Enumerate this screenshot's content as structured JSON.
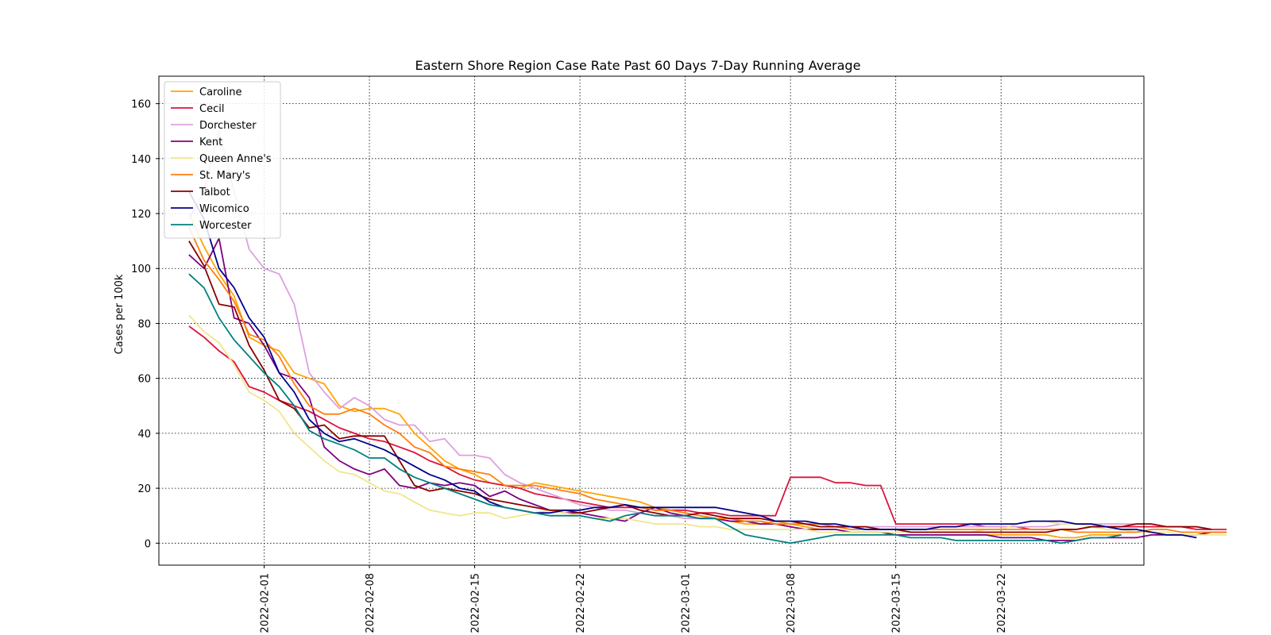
{
  "chart_data": {
    "type": "line",
    "title": "Eastern Shore Region Case Rate  Past 60 Days 7-Day Running Average",
    "xlabel": "",
    "ylabel": "Cases per 100k",
    "x_start": "2022-01-27",
    "x_range": [
      "2022-01-25T00:00",
      "2022-03-31T12:00"
    ],
    "ylim": [
      -8,
      170
    ],
    "x_ticks": [
      "2022-02-01",
      "2022-02-08",
      "2022-02-15",
      "2022-02-22",
      "2022-03-01",
      "2022-03-08",
      "2022-03-15",
      "2022-03-22"
    ],
    "y_ticks": [
      0,
      20,
      40,
      60,
      80,
      100,
      120,
      140,
      160
    ],
    "grid": true,
    "legend_position": "top-left",
    "series": [
      {
        "name": "Caroline",
        "color": "#ffa500",
        "values": [
          120,
          108,
          98,
          90,
          75,
          72,
          70,
          62,
          60,
          58,
          50,
          48,
          49,
          49,
          47,
          40,
          35,
          30,
          27,
          25,
          22,
          21,
          20,
          22,
          21,
          20,
          19,
          18,
          17,
          16,
          15,
          13,
          12,
          11,
          10,
          9,
          8,
          7,
          7,
          8,
          7,
          6,
          5,
          5,
          4,
          4,
          4,
          3,
          3,
          3,
          3,
          3,
          3,
          3,
          3,
          3,
          3,
          3,
          2,
          2,
          3,
          3,
          3
        ]
      },
      {
        "name": "Cecil",
        "color": "#dc143c",
        "values": [
          79,
          75,
          70,
          66,
          57,
          55,
          52,
          50,
          48,
          45,
          42,
          40,
          38,
          37,
          35,
          33,
          30,
          28,
          25,
          23,
          22,
          21,
          20,
          18,
          17,
          16,
          15,
          14,
          13,
          13,
          13,
          12,
          12,
          12,
          11,
          11,
          10,
          10,
          10,
          10,
          24,
          24,
          24,
          22,
          22,
          21,
          21,
          7,
          7,
          7,
          7,
          7,
          7,
          6,
          6,
          6,
          5,
          5,
          5,
          5,
          6,
          6,
          6,
          6,
          6,
          6,
          6,
          5,
          5,
          5
        ]
      },
      {
        "name": "Dorchester",
        "color": "#dda0dd",
        "values": [
          118,
          128,
          150,
          128,
          107,
          100,
          98,
          87,
          62,
          55,
          49,
          53,
          50,
          45,
          43,
          43,
          37,
          38,
          32,
          32,
          31,
          25,
          22,
          20,
          18,
          16,
          14,
          13,
          12,
          12,
          11,
          10,
          10,
          9,
          9,
          9,
          8,
          8,
          8,
          7,
          7,
          7,
          7,
          6,
          6,
          6,
          6,
          6,
          6,
          6,
          6,
          6,
          6,
          6,
          6,
          6,
          6,
          6,
          7,
          7,
          7,
          7,
          7,
          7,
          7,
          6,
          6,
          6
        ]
      },
      {
        "name": "Kent",
        "color": "#800080",
        "values": [
          105,
          100,
          111,
          82,
          80,
          72,
          62,
          60,
          53,
          35,
          30,
          27,
          25,
          27,
          21,
          20,
          22,
          21,
          22,
          21,
          17,
          19,
          16,
          14,
          12,
          11,
          11,
          10,
          9,
          8,
          11,
          13,
          11,
          10,
          9,
          9,
          8,
          8,
          7,
          7,
          6,
          5,
          5,
          5,
          4,
          4,
          4,
          3,
          3,
          3,
          3,
          3,
          3,
          3,
          2,
          2,
          2,
          1,
          1,
          1,
          2,
          2,
          2,
          2,
          3,
          3,
          3,
          3,
          4,
          4
        ]
      },
      {
        "name": "Queen Anne's",
        "color": "#f0e68c",
        "values": [
          83,
          77,
          73,
          65,
          55,
          52,
          48,
          40,
          35,
          30,
          26,
          25,
          22,
          19,
          18,
          15,
          12,
          11,
          10,
          11,
          11,
          9,
          10,
          11,
          12,
          11,
          10,
          9,
          9,
          9,
          8,
          7,
          7,
          7,
          6,
          6,
          5,
          5,
          5,
          5,
          5,
          5,
          4,
          4,
          4,
          4,
          4,
          4,
          4,
          4,
          4,
          4,
          4,
          5,
          5,
          7,
          8,
          8,
          7,
          7,
          6,
          5,
          5,
          4,
          4,
          4,
          3,
          3,
          3,
          3
        ]
      },
      {
        "name": "St. Mary's",
        "color": "#ff7f0e",
        "values": [
          115,
          103,
          96,
          88,
          76,
          74,
          68,
          58,
          50,
          47,
          47,
          49,
          47,
          43,
          40,
          35,
          33,
          28,
          27,
          26,
          25,
          21,
          21,
          21,
          20,
          19,
          18,
          16,
          15,
          14,
          13,
          12,
          12,
          11,
          10,
          9,
          9,
          8,
          8,
          7,
          7,
          7,
          7,
          6,
          5,
          5,
          5,
          5,
          5,
          5,
          5,
          5,
          5,
          5,
          5,
          5,
          5,
          5,
          5,
          4,
          4,
          4,
          4,
          4,
          5,
          5,
          4,
          4,
          4,
          4
        ]
      },
      {
        "name": "Talbot",
        "color": "#8b0000",
        "values": [
          110,
          101,
          87,
          86,
          72,
          63,
          52,
          49,
          42,
          43,
          38,
          39,
          39,
          39,
          30,
          21,
          19,
          20,
          19,
          18,
          16,
          15,
          14,
          13,
          12,
          12,
          11,
          12,
          13,
          14,
          12,
          11,
          10,
          10,
          11,
          10,
          9,
          9,
          9,
          8,
          8,
          7,
          6,
          6,
          6,
          6,
          5,
          5,
          4,
          4,
          4,
          4,
          4,
          4,
          4,
          4,
          4,
          4,
          5,
          5,
          6,
          6,
          6,
          7,
          7,
          6,
          6,
          6,
          5
        ]
      },
      {
        "name": "Wicomico",
        "color": "#00008b",
        "values": [
          128,
          118,
          100,
          93,
          82,
          75,
          62,
          55,
          45,
          40,
          37,
          38,
          36,
          34,
          31,
          28,
          25,
          23,
          20,
          19,
          15,
          13,
          12,
          11,
          11,
          12,
          12,
          13,
          13,
          14,
          13,
          13,
          13,
          13,
          13,
          13,
          12,
          11,
          10,
          8,
          8,
          8,
          7,
          7,
          6,
          5,
          5,
          5,
          5,
          5,
          6,
          6,
          7,
          7,
          7,
          7,
          8,
          8,
          8,
          7,
          7,
          6,
          5,
          5,
          4,
          3,
          3,
          2
        ]
      },
      {
        "name": "Worcester",
        "color": "#008080",
        "values": [
          98,
          93,
          82,
          74,
          68,
          62,
          57,
          50,
          41,
          38,
          36,
          34,
          31,
          31,
          27,
          24,
          22,
          20,
          18,
          16,
          14,
          13,
          12,
          11,
          10,
          10,
          10,
          9,
          8,
          10,
          11,
          10,
          10,
          10,
          9,
          9,
          6,
          3,
          2,
          1,
          0,
          1,
          2,
          3,
          3,
          3,
          3,
          3,
          2,
          2,
          2,
          1,
          1,
          1,
          1,
          1,
          1,
          1,
          0,
          1,
          2,
          2,
          3
        ]
      }
    ]
  }
}
